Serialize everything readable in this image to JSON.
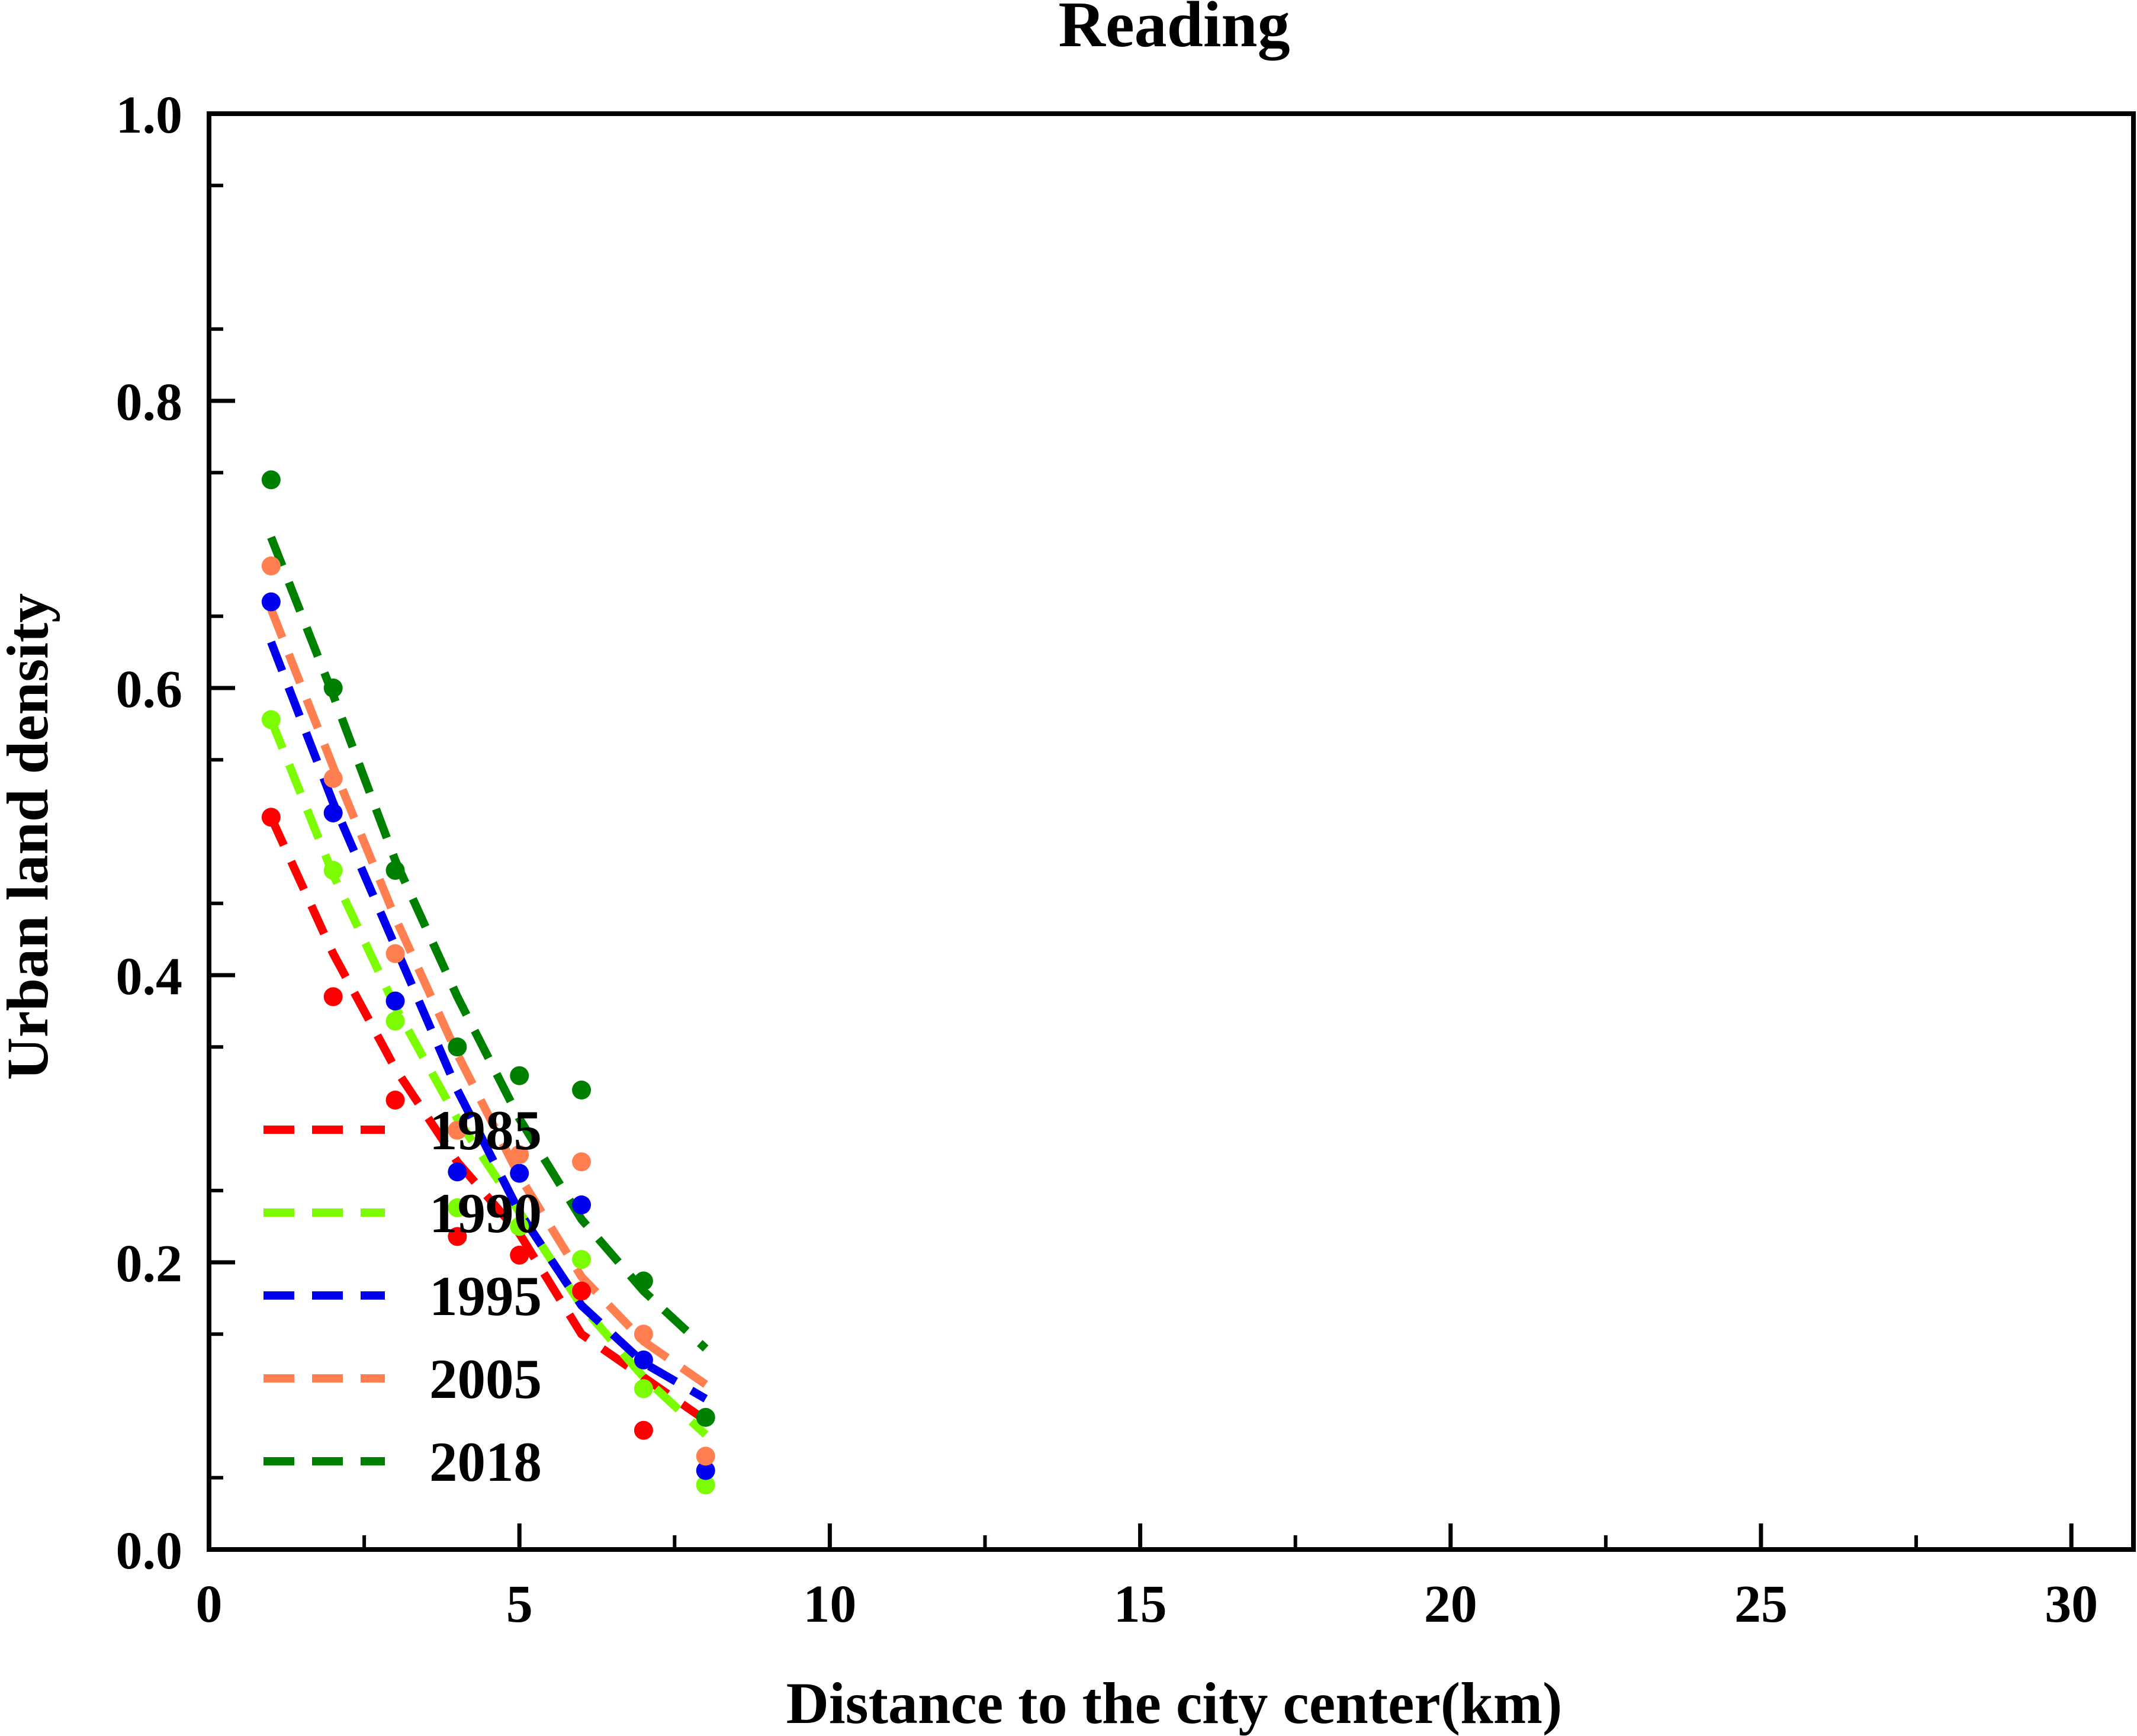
{
  "chart_data": {
    "type": "scatter",
    "title": "Reading",
    "xlabel": "Distance to the city center(km)",
    "ylabel": "Urban land density",
    "xlim": [
      0,
      31
    ],
    "ylim": [
      0,
      1.0
    ],
    "xticks": [
      "0",
      "5",
      "10",
      "15",
      "20",
      "25",
      "30"
    ],
    "yticks": [
      "0.0",
      "0.2",
      "0.4",
      "0.6",
      "0.8",
      "1.0"
    ],
    "grid": false,
    "legend_position": "lower-left",
    "series": [
      {
        "name": "1985",
        "color": "#ff0000",
        "points": [
          [
            1,
            0.51
          ],
          [
            2,
            0.385
          ],
          [
            3,
            0.313
          ],
          [
            4,
            0.218
          ],
          [
            5,
            0.205
          ],
          [
            6,
            0.18
          ],
          [
            7,
            0.083
          ]
        ],
        "fit": [
          [
            1,
            0.51
          ],
          [
            2,
            0.415
          ],
          [
            3,
            0.335
          ],
          [
            4,
            0.27
          ],
          [
            5,
            0.22
          ],
          [
            6,
            0.15
          ],
          [
            7,
            0.12
          ],
          [
            8,
            0.09
          ]
        ]
      },
      {
        "name": "1990",
        "color": "#7cfc00",
        "points": [
          [
            1,
            0.578
          ],
          [
            2,
            0.473
          ],
          [
            3,
            0.368
          ],
          [
            4,
            0.238
          ],
          [
            5,
            0.225
          ],
          [
            6,
            0.202
          ],
          [
            7,
            0.112
          ],
          [
            8,
            0.045
          ]
        ],
        "fit": [
          [
            1,
            0.578
          ],
          [
            2,
            0.47
          ],
          [
            3,
            0.378
          ],
          [
            4,
            0.3
          ],
          [
            5,
            0.235
          ],
          [
            6,
            0.17
          ],
          [
            7,
            0.12
          ],
          [
            8,
            0.08
          ]
        ]
      },
      {
        "name": "1995",
        "color": "#0000ee",
        "points": [
          [
            1,
            0.66
          ],
          [
            2,
            0.513
          ],
          [
            3,
            0.382
          ],
          [
            4,
            0.263
          ],
          [
            5,
            0.262
          ],
          [
            6,
            0.24
          ],
          [
            7,
            0.132
          ],
          [
            8,
            0.055
          ]
        ],
        "fit": [
          [
            1,
            0.632
          ],
          [
            2,
            0.52
          ],
          [
            3,
            0.42
          ],
          [
            4,
            0.32
          ],
          [
            5,
            0.235
          ],
          [
            6,
            0.17
          ],
          [
            7,
            0.13
          ],
          [
            8,
            0.105
          ]
        ]
      },
      {
        "name": "2005",
        "color": "#ff7f50",
        "points": [
          [
            1,
            0.685
          ],
          [
            2,
            0.537
          ],
          [
            3,
            0.415
          ],
          [
            4,
            0.292
          ],
          [
            5,
            0.275
          ],
          [
            6,
            0.27
          ],
          [
            7,
            0.15
          ],
          [
            8,
            0.065
          ]
        ],
        "fit": [
          [
            1,
            0.655
          ],
          [
            2,
            0.545
          ],
          [
            3,
            0.44
          ],
          [
            4,
            0.345
          ],
          [
            5,
            0.26
          ],
          [
            6,
            0.19
          ],
          [
            7,
            0.145
          ],
          [
            8,
            0.115
          ]
        ]
      },
      {
        "name": "2018",
        "color": "#008000",
        "points": [
          [
            1,
            0.745
          ],
          [
            2,
            0.6
          ],
          [
            3,
            0.473
          ],
          [
            4,
            0.35
          ],
          [
            5,
            0.33
          ],
          [
            6,
            0.32
          ],
          [
            7,
            0.187
          ],
          [
            8,
            0.092
          ]
        ],
        "fit": [
          [
            1,
            0.705
          ],
          [
            2,
            0.595
          ],
          [
            3,
            0.48
          ],
          [
            4,
            0.385
          ],
          [
            5,
            0.3
          ],
          [
            6,
            0.23
          ],
          [
            7,
            0.18
          ],
          [
            8,
            0.14
          ]
        ]
      }
    ]
  }
}
